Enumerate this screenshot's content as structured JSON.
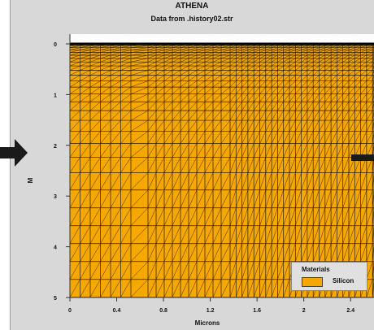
{
  "window": {
    "title": "ATHENA",
    "subtitle": "Data from .history02.str"
  },
  "plot": {
    "xlabel": "Microns",
    "ylabel": "M",
    "x_ticks": [
      "0",
      "0.4",
      "0.8",
      "1.2",
      "1.6",
      "2",
      "2.4"
    ],
    "y_ticks": [
      "0",
      "1",
      "2",
      "3",
      "4",
      "5"
    ],
    "xlim": [
      0,
      2.6
    ],
    "ylim": [
      0,
      5
    ],
    "material_color": "#f5a800",
    "mesh_color": "#2a1a00"
  },
  "legend": {
    "title": "Materials",
    "items": [
      {
        "label": "Silicon",
        "color": "#f5a800"
      }
    ]
  },
  "arrows": {
    "color": "#1a1a1a"
  }
}
